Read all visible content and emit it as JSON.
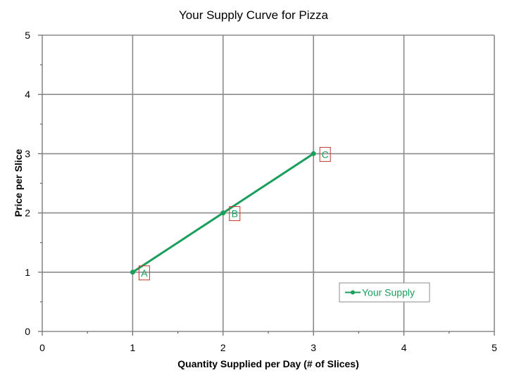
{
  "chart_data": {
    "type": "line",
    "title": "Your Supply Curve for Pizza",
    "xlabel": "Quantity Supplied per Day (# of Slices)",
    "ylabel": "Price per Slice",
    "xlim": [
      0,
      5
    ],
    "ylim": [
      0,
      5
    ],
    "x_ticks": [
      "0",
      "1",
      "2",
      "3",
      "4",
      "5"
    ],
    "y_ticks": [
      "0",
      "1",
      "2",
      "3",
      "4",
      "5"
    ],
    "grid": true,
    "legend_position": "bottom-right",
    "series": [
      {
        "name": "Your Supply",
        "color": "#1a9e5c",
        "smooth": true,
        "points": [
          {
            "x": 1,
            "y": 1,
            "label": "A"
          },
          {
            "x": 2,
            "y": 2,
            "label": "B"
          },
          {
            "x": 3,
            "y": 3,
            "label": "C"
          }
        ]
      }
    ],
    "label_box_color": "#c0392b"
  }
}
